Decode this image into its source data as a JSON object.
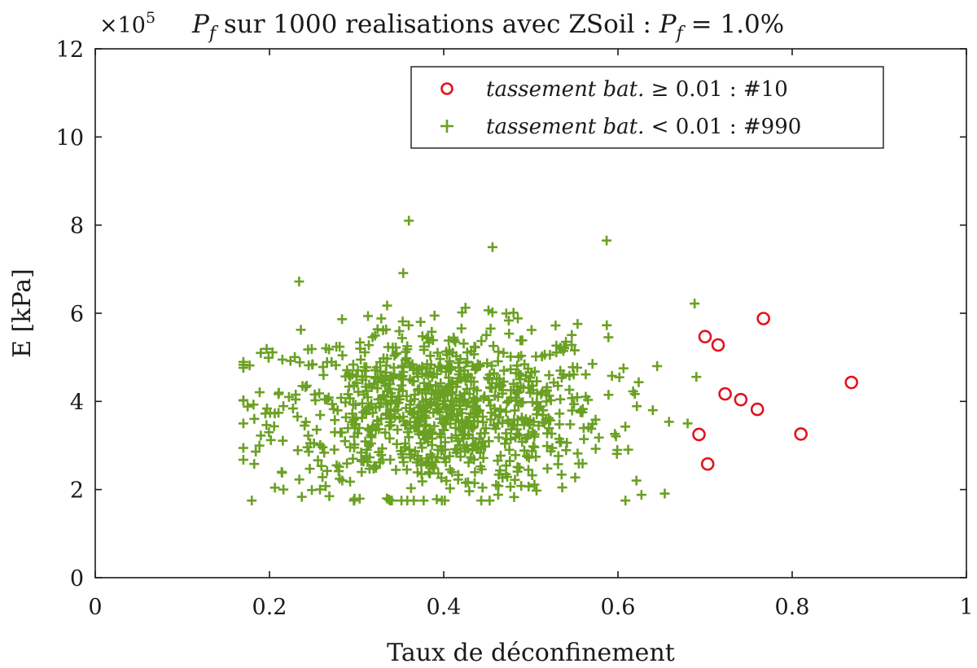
{
  "chart_data": {
    "type": "scatter",
    "title_prefix": "P",
    "title_sub": "f",
    "title_mid": " sur 1000 realisations avec ZSoil : ",
    "title_suffix": " = 1.0%",
    "xlabel": "Taux de déconfinement",
    "ylabel": "E [kPa]",
    "y_multiplier_base": "×10",
    "y_multiplier_exp": "5",
    "xlim": [
      0,
      1
    ],
    "ylim": [
      0,
      12
    ],
    "xticks": [
      0,
      0.2,
      0.4,
      0.6,
      0.8,
      1
    ],
    "xtick_labels": [
      "0",
      "0.2",
      "0.4",
      "0.6",
      "0.8",
      "1"
    ],
    "yticks": [
      0,
      2,
      4,
      6,
      8,
      10,
      12
    ],
    "ytick_labels": [
      "0",
      "2",
      "4",
      "6",
      "8",
      "10",
      "12"
    ],
    "legend_position": "top-right",
    "series": [
      {
        "name": "tassement bat. ≥ 0.01 : #10",
        "legend_italic": "tassement bat.",
        "legend_rest": " ≥ 0.01 : #10",
        "marker": "circle",
        "color": "#e3121b",
        "points": [
          [
            0.693,
            3.25
          ],
          [
            0.703,
            2.58
          ],
          [
            0.7,
            5.47
          ],
          [
            0.715,
            5.28
          ],
          [
            0.723,
            4.17
          ],
          [
            0.741,
            4.04
          ],
          [
            0.76,
            3.82
          ],
          [
            0.767,
            5.88
          ],
          [
            0.81,
            3.26
          ],
          [
            0.868,
            4.43
          ]
        ]
      },
      {
        "name": "tassement bat. < 0.01 : #990",
        "legend_italic": "tassement bat.",
        "legend_rest": " < 0.01 : #990",
        "marker": "plus",
        "color": "#6aa023",
        "count": 990,
        "distribution": {
          "x_mean": 0.395,
          "x_sd": 0.095,
          "x_min": 0.17,
          "x_max": 0.69,
          "y_mean": 3.8,
          "y_sd": 0.95,
          "y_min": 1.75,
          "y_max": 8.1
        },
        "notable_points": [
          [
            0.17,
            3.5
          ],
          [
            0.36,
            8.1
          ],
          [
            0.587,
            7.65
          ],
          [
            0.456,
            7.5
          ],
          [
            0.688,
            6.22
          ],
          [
            0.234,
            6.72
          ],
          [
            0.216,
            2.0
          ],
          [
            0.392,
            1.78
          ],
          [
            0.627,
            1.88
          ],
          [
            0.19,
            5.1
          ],
          [
            0.645,
            4.8
          ],
          [
            0.64,
            3.8
          ],
          [
            0.68,
            3.5
          ]
        ]
      }
    ]
  }
}
